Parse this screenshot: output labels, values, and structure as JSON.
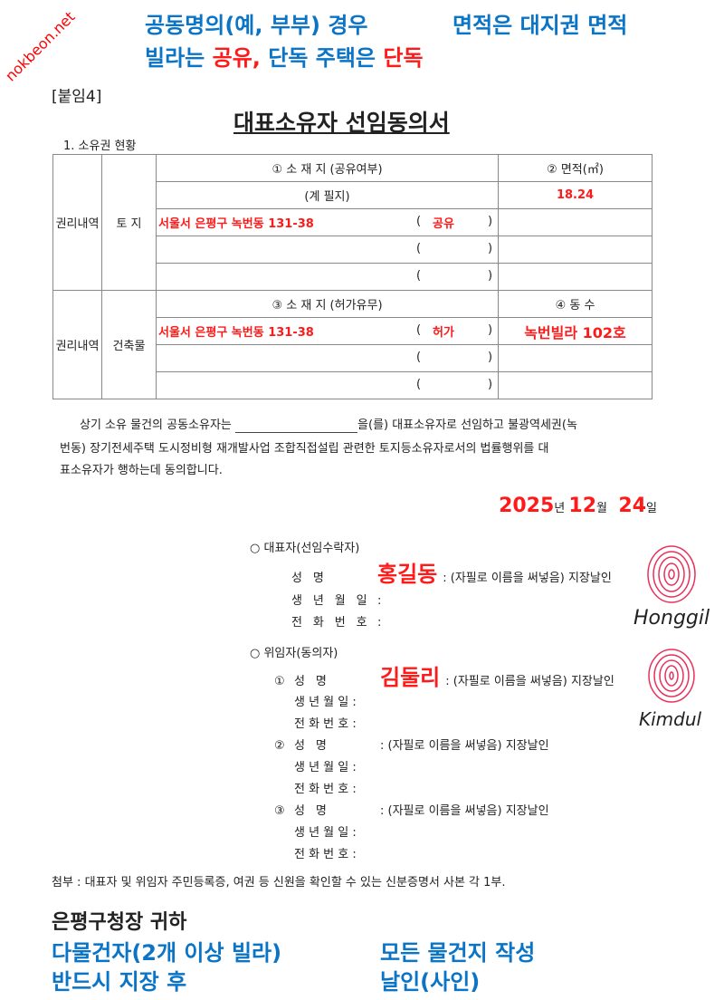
{
  "watermark": "nokbeon.net",
  "attachment_label": "[붙임4]",
  "title": "대표소유자 선임동의서",
  "section1": "1. 소유권 현황",
  "table": {
    "rights_label": "권리내역",
    "land_label": "토 지",
    "building_label": "건축물",
    "land_header": "① 소 재 지 (공유여부)",
    "area_header": "② 면적(㎡)",
    "total_row": "(계 필지)",
    "area_value": "18.24",
    "land_address": "서울서 은평구 녹번동 131-38",
    "land_share": "공유",
    "bldg_header": "③ 소 재 지 (허가유무)",
    "units_header": "④ 동 수",
    "bldg_address": "서울서 은평구 녹번동 131-38",
    "bldg_permit": "허가",
    "bldg_unit": "녹번빌라 102호",
    "paren_open": "(",
    "paren_close": ")"
  },
  "body_text": {
    "part1": "상기 소유 물건의 공동소유자는",
    "part2": "을(를) 대표소유자로 선임하고 불광역세권(녹",
    "line2": "번동) 장기전세주택 도시정비형 재개발사업 조합직접설립 관련한 토지등소유자로서의 법률행위를 대",
    "line3": "표소유자가 행하는데 동의합니다."
  },
  "date": {
    "year": "2025",
    "year_unit": "년",
    "month": "12",
    "month_unit": "월",
    "day": "24",
    "day_unit": "일"
  },
  "representative": {
    "heading": "○ 대표자(선임수락자)",
    "name_label": "성 명",
    "name_hint": ": (자필로 이름을 써넣음) 지장날인",
    "name_value": "홍길동",
    "signature": "Honggil",
    "birth_label": "생 년 월 일",
    "phone_label": "전 화 번 호",
    "colon": ":"
  },
  "delegators": {
    "heading": "○ 위임자(동의자)",
    "items": [
      {
        "num": "①",
        "name_value": "김둘리",
        "signature": "Kimdul"
      },
      {
        "num": "②",
        "name_value": "",
        "signature": ""
      },
      {
        "num": "③",
        "name_value": "",
        "signature": ""
      }
    ],
    "name_label": "성 명",
    "name_hint": ": (자필로 이름을 써넣음) 지장날인",
    "birth_label": "생 년 월 일 :",
    "phone_label": "전 화 번 호 :"
  },
  "attachment_note": "첨부 : 대표자 및 위임자 주민등록증, 여권 등 신원을 확인할 수 있는 신분증명서 사본 각 1부.",
  "addressee": "은평구청장 귀하",
  "annotations": {
    "joint": "공동명의(예, 부부) 경우",
    "villa": "빌라는",
    "detached": "단독 주택은",
    "shared": "공유,",
    "single": "단독",
    "area_note": "면적은 대지권 면적",
    "multi": "다물건자(2개 이상 빌라)",
    "all": "모든 물건지 작성",
    "must": "반드시 지장 후",
    "seal": "날인(사인)"
  },
  "colors": {
    "annotation_blue": "#0a74c6",
    "fill_red": "#ff1a1a",
    "fingerprint": "#e8315a"
  }
}
